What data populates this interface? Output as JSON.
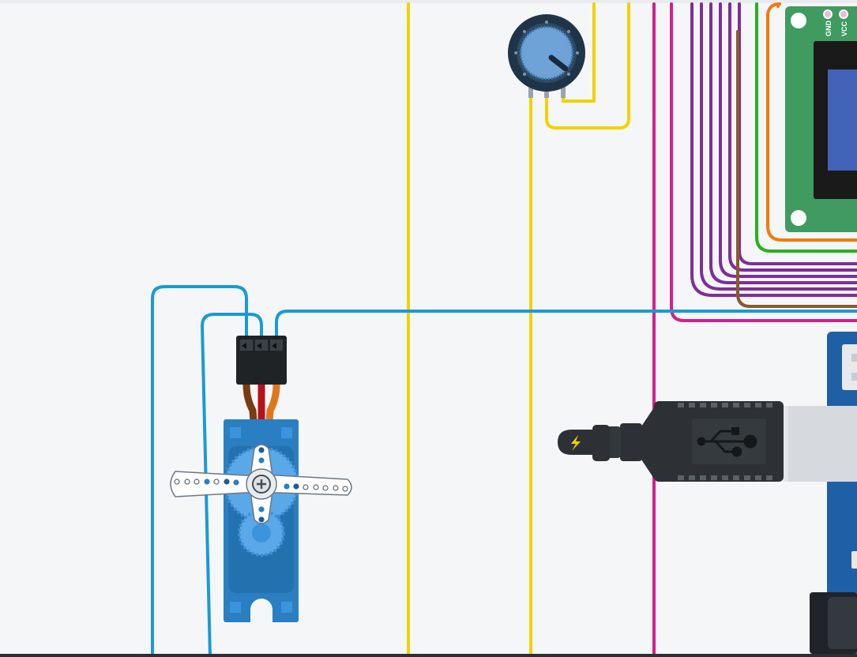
{
  "app": {
    "type": "circuit-editor-canvas"
  },
  "lcd": {
    "pin_labels": [
      "GND",
      "VCC"
    ]
  },
  "components": {
    "potentiometer": "potentiometer",
    "servo": "micro-servo",
    "usb_cable": "usb-cable",
    "lcd": "lcd-16x2",
    "arduino": "arduino-board"
  },
  "colors": {
    "canvas_bg": "#f5f6f8",
    "wire_blue": "#1a9ad6",
    "wire_yellow": "#f2d200",
    "wire_magenta": "#d0218a",
    "wire_purple": "#7f2e9a",
    "wire_green": "#27b11d",
    "wire_orange": "#f07c0b",
    "wire_brown": "#8b5a2b",
    "servo_blue": "#2a7fc3",
    "lcd_green": "#3f9b5f",
    "lcd_screen": "#4363b8",
    "arduino_blue": "#1f5fa6"
  }
}
